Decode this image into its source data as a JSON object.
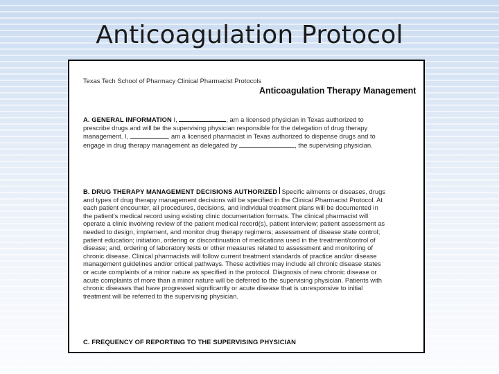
{
  "slide": {
    "title": "Anticoagulation Protocol"
  },
  "document": {
    "header_left": [
      "Texas Tech School of Pharmacy",
      "Clinical Pharmacist Protocols"
    ],
    "header_right": [
      "Anticoagulation Therapy",
      "Management"
    ],
    "section_a": {
      "heading": "A.  GENERAL  INFORMATION",
      "para1": {
        "l1_pre": "I,",
        "l1_post": ", am a licensed physician in Texas authorized to prescribe drugs and will be the",
        "l2": "supervising physician responsible for the delegation of drug therapy management."
      },
      "para2": {
        "l1_pre": "I,",
        "l1_post": ", am a licensed pharmacist in Texas authorized to dispense drugs and to",
        "l2_pre": "engage in drug therapy management as delegated by",
        "l2_post": ", the supervising",
        "l3": "physician."
      }
    },
    "section_b": {
      "heading": "B. DRUG THERAPY MANAGEMENT  DECISIONS AUTHORIZED",
      "para1": [
        "Specific ailments or diseases, drugs and types of drug therapy management  decisions will be",
        "specified in the Clinical Pharmacist Protocol."
      ],
      "para2": [
        "At each patient encounter, all procedures, decisions, and individual treatment plans will be",
        "documented in the patient's medical record using existing clinic documentation formats.",
        "The clinical pharmacist will operate a clinic involving review of the patient medical record(s),",
        "patient interview; patient assessment as needed to design, implement, and monitor drug therapy",
        "regimens; assessment of disease state control; patient education; initiation, ordering or",
        "discontinuation of medications used in the treatment/control of disease; and, ordering of",
        "laboratory tests or other measures related to assessment and monitoring of chronic disease.",
        "Clinical pharmacists will follow current treatment standards of practice and/or disease",
        "management guidelines and/or critical pathways. These activities may include all chronic disease",
        "states or acute complaints of a minor nature as specified in the protocol. Diagnosis of new",
        "chronic disease or acute complaints of more than a minor nature will be deferred to the",
        "supervising physician. Patients with chronic diseases that have progressed significantly or acute",
        "disease that is unresponsive to initial treatment will be referred to the supervising physician."
      ]
    },
    "section_c": {
      "heading": "C. FREQUENCY  OF REPORTING  TO THE  SUPERVISING  PHYSICIAN"
    }
  }
}
